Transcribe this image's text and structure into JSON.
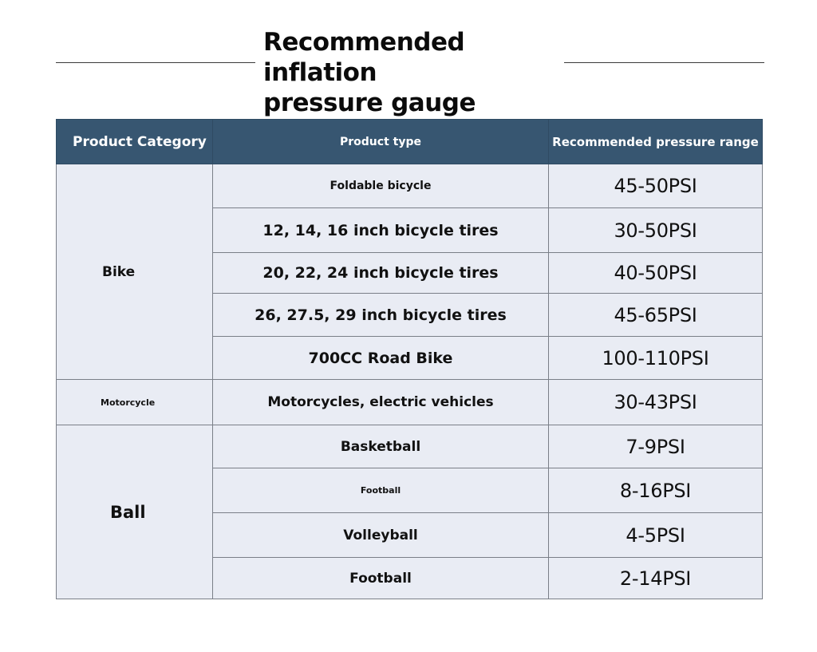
{
  "title": {
    "line1": "Recommended inflation",
    "line2": "pressure gauge"
  },
  "table": {
    "headers": {
      "category": "Product Category",
      "type": "Product type",
      "range": "Recommended pressure range"
    },
    "groups": [
      {
        "category": "Bike",
        "rows": [
          {
            "type": "Foldable bicycle",
            "range": "45-50PSI"
          },
          {
            "type": "12, 14, 16 inch bicycle tires",
            "range": "30-50PSI"
          },
          {
            "type": "20, 22, 24 inch bicycle tires",
            "range": "40-50PSI"
          },
          {
            "type": "26, 27.5, 29 inch bicycle tires",
            "range": "45-65PSI"
          },
          {
            "type": "700CC Road Bike",
            "range": "100-110PSI"
          }
        ]
      },
      {
        "category": "Motorcycle",
        "rows": [
          {
            "type": "Motorcycles, electric vehicles",
            "range": "30-43PSI"
          }
        ]
      },
      {
        "category": "Ball",
        "rows": [
          {
            "type": "Basketball",
            "range": "7-9PSI"
          },
          {
            "type": "Football",
            "range": "8-16PSI"
          },
          {
            "type": "Volleyball",
            "range": "4-5PSI"
          },
          {
            "type": "Football",
            "range": "2-14PSI"
          }
        ]
      }
    ]
  },
  "colors": {
    "header_background": "#375671",
    "header_text": "#ffffff",
    "cell_background": "#e9ecf4",
    "border": "#7a7f88"
  }
}
